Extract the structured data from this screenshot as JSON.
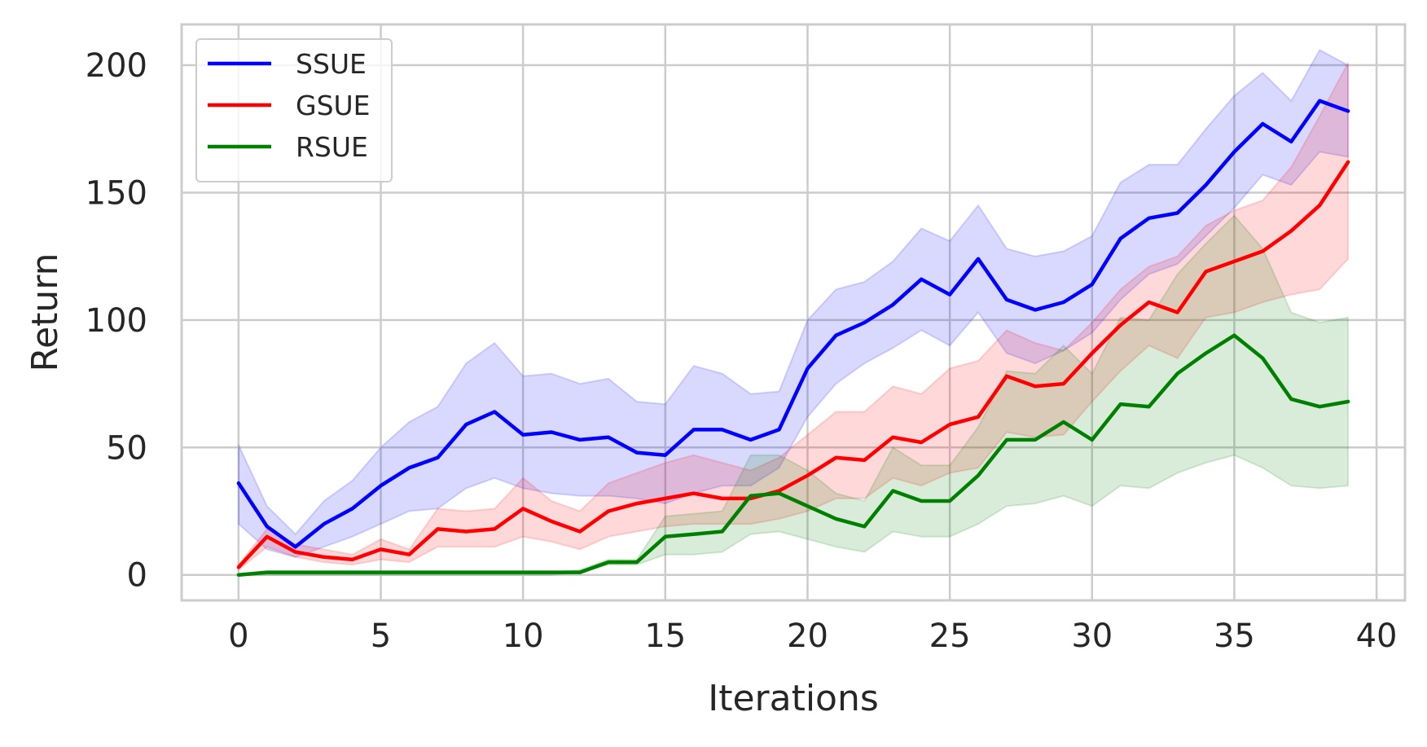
{
  "chart_data": {
    "type": "line",
    "xlabel": "Iterations",
    "ylabel": "Return",
    "xlim": [
      -2,
      41
    ],
    "ylim": [
      -10,
      216
    ],
    "xticks": [
      0,
      5,
      10,
      15,
      20,
      25,
      30,
      35,
      40
    ],
    "yticks": [
      0,
      50,
      100,
      150,
      200
    ],
    "grid": true,
    "legend_position": "top-left",
    "x": [
      0,
      1,
      2,
      3,
      4,
      5,
      6,
      7,
      8,
      9,
      10,
      11,
      12,
      13,
      14,
      15,
      16,
      17,
      18,
      19,
      20,
      21,
      22,
      23,
      24,
      25,
      26,
      27,
      28,
      29,
      30,
      31,
      32,
      33,
      34,
      35,
      36,
      37,
      38,
      39
    ],
    "series": [
      {
        "name": "SSUE",
        "color": "#0000ff",
        "values": [
          36,
          19,
          11,
          20,
          26,
          35,
          42,
          46,
          59,
          64,
          55,
          56,
          53,
          54,
          48,
          47,
          57,
          57,
          53,
          57,
          81,
          94,
          99,
          106,
          116,
          110,
          124,
          108,
          104,
          107,
          114,
          132,
          140,
          142,
          153,
          166,
          177,
          170,
          186,
          182
        ],
        "lower": [
          20,
          10,
          7,
          11,
          15,
          20,
          25,
          26,
          34,
          38,
          34,
          32,
          31,
          31,
          30,
          28,
          32,
          35,
          35,
          42,
          62,
          75,
          83,
          89,
          96,
          90,
          103,
          87,
          83,
          88,
          95,
          108,
          118,
          122,
          133,
          144,
          157,
          153,
          166,
          164
        ],
        "upper": [
          51,
          27,
          16,
          29,
          37,
          50,
          60,
          66,
          83,
          91,
          78,
          79,
          75,
          77,
          68,
          67,
          82,
          79,
          71,
          72,
          100,
          112,
          115,
          123,
          136,
          131,
          145,
          128,
          125,
          127,
          133,
          154,
          161,
          161,
          175,
          188,
          197,
          186,
          206,
          200
        ]
      },
      {
        "name": "GSUE",
        "color": "#ff0000",
        "values": [
          3,
          15,
          9,
          7,
          6,
          10,
          8,
          18,
          17,
          18,
          26,
          21,
          17,
          25,
          28,
          30,
          32,
          30,
          30,
          33,
          39,
          46,
          45,
          54,
          52,
          59,
          62,
          78,
          74,
          75,
          87,
          98,
          107,
          103,
          119,
          123,
          127,
          135,
          145,
          162
        ],
        "lower": [
          2,
          11,
          7,
          5,
          4,
          6,
          5,
          11,
          11,
          11,
          15,
          13,
          10,
          15,
          17,
          19,
          20,
          20,
          20,
          22,
          25,
          30,
          30,
          38,
          35,
          40,
          42,
          56,
          54,
          55,
          68,
          80,
          90,
          85,
          101,
          103,
          107,
          110,
          112,
          124
        ],
        "upper": [
          4,
          18,
          12,
          10,
          8,
          14,
          10,
          26,
          25,
          26,
          38,
          29,
          25,
          36,
          40,
          44,
          47,
          44,
          41,
          46,
          55,
          64,
          64,
          74,
          71,
          81,
          84,
          96,
          91,
          88,
          99,
          112,
          121,
          125,
          137,
          143,
          147,
          160,
          180,
          201
        ]
      },
      {
        "name": "RSUE",
        "color": "#008000",
        "values": [
          0,
          1,
          1,
          1,
          1,
          1,
          1,
          1,
          1,
          1,
          1,
          1,
          1,
          5,
          5,
          15,
          16,
          17,
          31,
          32,
          27,
          22,
          19,
          33,
          29,
          29,
          39,
          53,
          53,
          60,
          53,
          67,
          66,
          79,
          87,
          94,
          85,
          69,
          66,
          68
        ],
        "lower": [
          0,
          0,
          0,
          0,
          0,
          0,
          0,
          0,
          0,
          0,
          0,
          0,
          1,
          4,
          4,
          8,
          8,
          9,
          16,
          17,
          14,
          11,
          9,
          17,
          15,
          15,
          20,
          27,
          28,
          31,
          27,
          35,
          34,
          40,
          44,
          47,
          42,
          35,
          34,
          35
        ],
        "upper": [
          0,
          1,
          1,
          1,
          1,
          1,
          1,
          1,
          1,
          1,
          1,
          1,
          2,
          6,
          6,
          23,
          24,
          25,
          47,
          47,
          41,
          32,
          29,
          50,
          43,
          43,
          58,
          80,
          79,
          90,
          79,
          101,
          100,
          118,
          130,
          141,
          128,
          103,
          99,
          101
        ]
      }
    ]
  }
}
